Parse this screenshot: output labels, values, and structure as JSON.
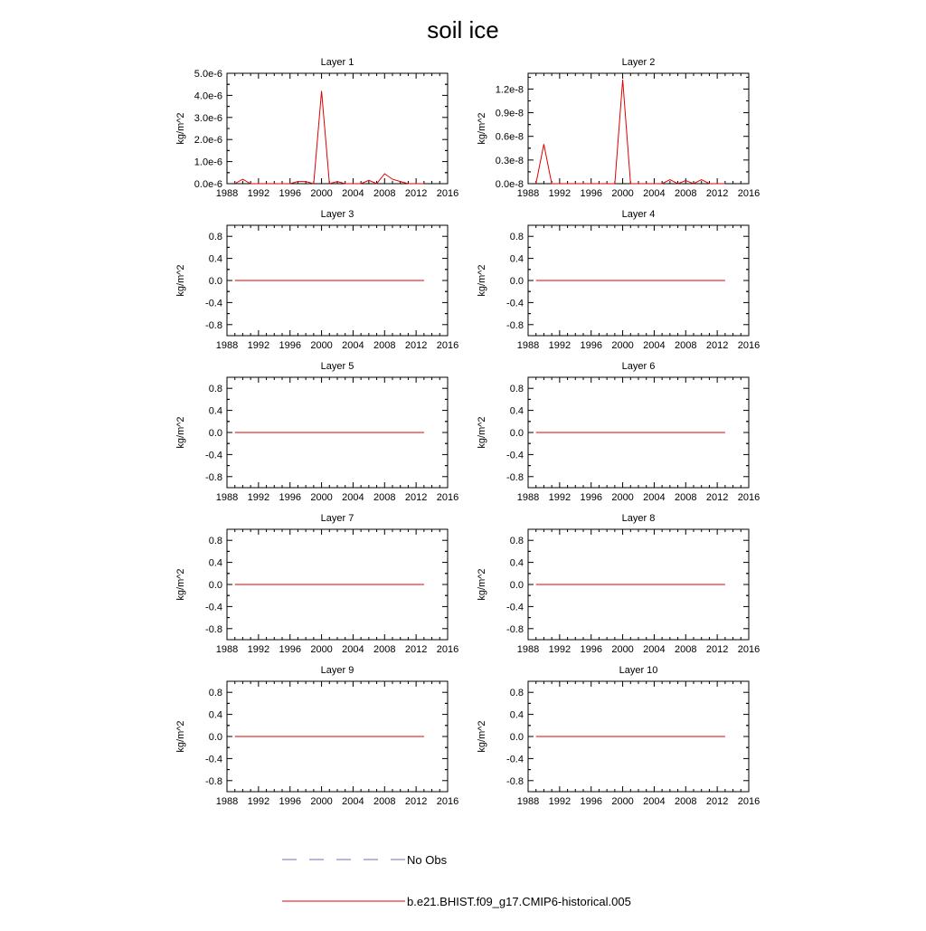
{
  "title": "soil ice",
  "colors": {
    "model_line": "#e00000",
    "obs_line": "#6f6fb8",
    "axis": "#000000"
  },
  "legend": {
    "obs_label": "No Obs",
    "model_label": "b.e21.BHIST.f09_g17.CMIP6-historical.005"
  },
  "chart_data": [
    {
      "type": "line",
      "title": "Layer 1",
      "xlabel": "",
      "ylabel": "kg/m^2",
      "xlim": [
        1988,
        2016
      ],
      "ylim": [
        0,
        5e-06
      ],
      "xticks": [
        "1988",
        "1992",
        "1996",
        "2000",
        "2004",
        "2008",
        "2012",
        "2016"
      ],
      "yticks": [
        {
          "v": 0,
          "t": "0.0e-6"
        },
        {
          "v": 1e-06,
          "t": "1.0e-6"
        },
        {
          "v": 2e-06,
          "t": "2.0e-6"
        },
        {
          "v": 3e-06,
          "t": "3.0e-6"
        },
        {
          "v": 4e-06,
          "t": "4.0e-6"
        },
        {
          "v": 5e-06,
          "t": "5.0e-6"
        }
      ],
      "series": [
        {
          "name": "b.e21.BHIST.f09_g17.CMIP6-historical.005",
          "x": [
            1989,
            1990,
            1991,
            1992,
            1993,
            1994,
            1995,
            1996,
            1997,
            1998,
            1999,
            2000,
            2001,
            2002,
            2003,
            2004,
            2005,
            2006,
            2007,
            2008,
            2009,
            2010,
            2011,
            2012,
            2013
          ],
          "y": [
            0,
            2e-07,
            0,
            0,
            0,
            0,
            0,
            0,
            1e-07,
            1e-07,
            0,
            4.2e-06,
            0,
            1e-07,
            0,
            0,
            0,
            1.5e-07,
            0,
            4.5e-07,
            2e-07,
            1e-07,
            0,
            0,
            0
          ]
        }
      ]
    },
    {
      "type": "line",
      "title": "Layer 2",
      "xlabel": "",
      "ylabel": "kg/m^2",
      "xlim": [
        1988,
        2016
      ],
      "ylim": [
        0,
        1.4e-08
      ],
      "xticks": [
        "1988",
        "1992",
        "1996",
        "2000",
        "2004",
        "2008",
        "2012",
        "2016"
      ],
      "yticks": [
        {
          "v": 0,
          "t": "0.0e-8"
        },
        {
          "v": 3e-09,
          "t": "0.3e-8"
        },
        {
          "v": 6e-09,
          "t": "0.6e-8"
        },
        {
          "v": 9e-09,
          "t": "0.9e-8"
        },
        {
          "v": 1.2e-08,
          "t": "1.2e-8"
        }
      ],
      "series": [
        {
          "name": "b.e21.BHIST.f09_g17.CMIP6-historical.005",
          "x": [
            1989,
            1990,
            1991,
            1992,
            1993,
            1994,
            1995,
            1996,
            1997,
            1998,
            1999,
            2000,
            2001,
            2002,
            2003,
            2004,
            2005,
            2006,
            2007,
            2008,
            2009,
            2010,
            2011,
            2012,
            2013
          ],
          "y": [
            0,
            5e-09,
            0,
            0,
            0,
            0,
            0,
            0,
            0,
            0,
            0,
            1.32e-08,
            0,
            0,
            0,
            0,
            0,
            5e-10,
            0,
            4e-10,
            0,
            5e-10,
            0,
            0,
            0
          ]
        }
      ]
    },
    {
      "type": "line",
      "title": "Layer 3",
      "xlabel": "",
      "ylabel": "kg/m^2",
      "xlim": [
        1988,
        2016
      ],
      "ylim": [
        -1,
        1
      ],
      "xticks": [
        "1988",
        "1992",
        "1996",
        "2000",
        "2004",
        "2008",
        "2012",
        "2016"
      ],
      "yticks": [
        {
          "v": -0.8,
          "t": "-0.8"
        },
        {
          "v": -0.4,
          "t": "-0.4"
        },
        {
          "v": 0,
          "t": "0.0"
        },
        {
          "v": 0.4,
          "t": "0.4"
        },
        {
          "v": 0.8,
          "t": "0.8"
        }
      ],
      "series": [
        {
          "name": "b.e21.BHIST.f09_g17.CMIP6-historical.005",
          "x": [
            1989,
            2013
          ],
          "y": [
            0,
            0
          ]
        }
      ]
    },
    {
      "type": "line",
      "title": "Layer 4",
      "xlabel": "",
      "ylabel": "kg/m^2",
      "xlim": [
        1988,
        2016
      ],
      "ylim": [
        -1,
        1
      ],
      "xticks": [
        "1988",
        "1992",
        "1996",
        "2000",
        "2004",
        "2008",
        "2012",
        "2016"
      ],
      "yticks": [
        {
          "v": -0.8,
          "t": "-0.8"
        },
        {
          "v": -0.4,
          "t": "-0.4"
        },
        {
          "v": 0,
          "t": "0.0"
        },
        {
          "v": 0.4,
          "t": "0.4"
        },
        {
          "v": 0.8,
          "t": "0.8"
        }
      ],
      "series": [
        {
          "name": "b.e21.BHIST.f09_g17.CMIP6-historical.005",
          "x": [
            1989,
            2013
          ],
          "y": [
            0,
            0
          ]
        }
      ]
    },
    {
      "type": "line",
      "title": "Layer 5",
      "xlabel": "",
      "ylabel": "kg/m^2",
      "xlim": [
        1988,
        2016
      ],
      "ylim": [
        -1,
        1
      ],
      "xticks": [
        "1988",
        "1992",
        "1996",
        "2000",
        "2004",
        "2008",
        "2012",
        "2016"
      ],
      "yticks": [
        {
          "v": -0.8,
          "t": "-0.8"
        },
        {
          "v": -0.4,
          "t": "-0.4"
        },
        {
          "v": 0,
          "t": "0.0"
        },
        {
          "v": 0.4,
          "t": "0.4"
        },
        {
          "v": 0.8,
          "t": "0.8"
        }
      ],
      "series": [
        {
          "name": "b.e21.BHIST.f09_g17.CMIP6-historical.005",
          "x": [
            1989,
            2013
          ],
          "y": [
            0,
            0
          ]
        }
      ]
    },
    {
      "type": "line",
      "title": "Layer 6",
      "xlabel": "",
      "ylabel": "kg/m^2",
      "xlim": [
        1988,
        2016
      ],
      "ylim": [
        -1,
        1
      ],
      "xticks": [
        "1988",
        "1992",
        "1996",
        "2000",
        "2004",
        "2008",
        "2012",
        "2016"
      ],
      "yticks": [
        {
          "v": -0.8,
          "t": "-0.8"
        },
        {
          "v": -0.4,
          "t": "-0.4"
        },
        {
          "v": 0,
          "t": "0.0"
        },
        {
          "v": 0.4,
          "t": "0.4"
        },
        {
          "v": 0.8,
          "t": "0.8"
        }
      ],
      "series": [
        {
          "name": "b.e21.BHIST.f09_g17.CMIP6-historical.005",
          "x": [
            1989,
            2013
          ],
          "y": [
            0,
            0
          ]
        }
      ]
    },
    {
      "type": "line",
      "title": "Layer 7",
      "xlabel": "",
      "ylabel": "kg/m^2",
      "xlim": [
        1988,
        2016
      ],
      "ylim": [
        -1,
        1
      ],
      "xticks": [
        "1988",
        "1992",
        "1996",
        "2000",
        "2004",
        "2008",
        "2012",
        "2016"
      ],
      "yticks": [
        {
          "v": -0.8,
          "t": "-0.8"
        },
        {
          "v": -0.4,
          "t": "-0.4"
        },
        {
          "v": 0,
          "t": "0.0"
        },
        {
          "v": 0.4,
          "t": "0.4"
        },
        {
          "v": 0.8,
          "t": "0.8"
        }
      ],
      "series": [
        {
          "name": "b.e21.BHIST.f09_g17.CMIP6-historical.005",
          "x": [
            1989,
            2013
          ],
          "y": [
            0,
            0
          ]
        }
      ]
    },
    {
      "type": "line",
      "title": "Layer 8",
      "xlabel": "",
      "ylabel": "kg/m^2",
      "xlim": [
        1988,
        2016
      ],
      "ylim": [
        -1,
        1
      ],
      "xticks": [
        "1988",
        "1992",
        "1996",
        "2000",
        "2004",
        "2008",
        "2012",
        "2016"
      ],
      "yticks": [
        {
          "v": -0.8,
          "t": "-0.8"
        },
        {
          "v": -0.4,
          "t": "-0.4"
        },
        {
          "v": 0,
          "t": "0.0"
        },
        {
          "v": 0.4,
          "t": "0.4"
        },
        {
          "v": 0.8,
          "t": "0.8"
        }
      ],
      "series": [
        {
          "name": "b.e21.BHIST.f09_g17.CMIP6-historical.005",
          "x": [
            1989,
            2013
          ],
          "y": [
            0,
            0
          ]
        }
      ]
    },
    {
      "type": "line",
      "title": "Layer 9",
      "xlabel": "",
      "ylabel": "kg/m^2",
      "xlim": [
        1988,
        2016
      ],
      "ylim": [
        -1,
        1
      ],
      "xticks": [
        "1988",
        "1992",
        "1996",
        "2000",
        "2004",
        "2008",
        "2012",
        "2016"
      ],
      "yticks": [
        {
          "v": -0.8,
          "t": "-0.8"
        },
        {
          "v": -0.4,
          "t": "-0.4"
        },
        {
          "v": 0,
          "t": "0.0"
        },
        {
          "v": 0.4,
          "t": "0.4"
        },
        {
          "v": 0.8,
          "t": "0.8"
        }
      ],
      "series": [
        {
          "name": "b.e21.BHIST.f09_g17.CMIP6-historical.005",
          "x": [
            1989,
            2013
          ],
          "y": [
            0,
            0
          ]
        }
      ]
    },
    {
      "type": "line",
      "title": "Layer 10",
      "xlabel": "",
      "ylabel": "kg/m^2",
      "xlim": [
        1988,
        2016
      ],
      "ylim": [
        -1,
        1
      ],
      "xticks": [
        "1988",
        "1992",
        "1996",
        "2000",
        "2004",
        "2008",
        "2012",
        "2016"
      ],
      "yticks": [
        {
          "v": -0.8,
          "t": "-0.8"
        },
        {
          "v": -0.4,
          "t": "-0.4"
        },
        {
          "v": 0,
          "t": "0.0"
        },
        {
          "v": 0.4,
          "t": "0.4"
        },
        {
          "v": 0.8,
          "t": "0.8"
        }
      ],
      "series": [
        {
          "name": "b.e21.BHIST.f09_g17.CMIP6-historical.005",
          "x": [
            1989,
            2013
          ],
          "y": [
            0,
            0
          ]
        }
      ]
    }
  ]
}
